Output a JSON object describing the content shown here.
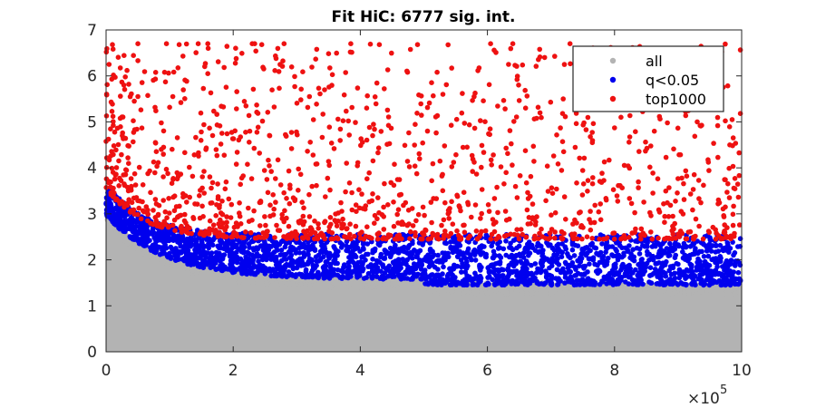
{
  "chart_data": {
    "type": "scatter",
    "title": "Fit HiC: 6777 sig. int.",
    "xlabel": "",
    "ylabel": "",
    "xlim": [
      0,
      10
    ],
    "ylim": [
      0,
      7
    ],
    "xticks": [
      "0",
      "2",
      "4",
      "6",
      "8",
      "10"
    ],
    "yticks": [
      "0",
      "1",
      "2",
      "3",
      "4",
      "5",
      "6",
      "7"
    ],
    "x_exponent_label": {
      "base": "×10",
      "exp": "5"
    },
    "grid": false,
    "legend_position": "top-right",
    "series": [
      {
        "name": "all",
        "color": "#b3b3b3",
        "marker": "dot",
        "description": "dense band from 0 up to a ceiling decaying from ~2.9 at x=0 to ~1.5 at x=10"
      },
      {
        "name": "q<0.05",
        "color": "#0000ee",
        "marker": "dot",
        "description": "band just above the grey ceiling, up to ~3.7 near x=0 and ~2.5 at x=10"
      },
      {
        "name": "top1000",
        "color": "#ee1111",
        "marker": "dot",
        "description": "scattered points above the blue band, up to ~6.7"
      }
    ],
    "notable_red_points": [
      {
        "x": 0.1,
        "y": 6.68
      },
      {
        "x": 0.5,
        "y": 6.7
      },
      {
        "x": 0.95,
        "y": 6.7
      },
      {
        "x": 1.15,
        "y": 6.68
      },
      {
        "x": 1.45,
        "y": 6.7
      },
      {
        "x": 1.6,
        "y": 6.7
      },
      {
        "x": 2.3,
        "y": 6.7
      },
      {
        "x": 2.45,
        "y": 6.68
      },
      {
        "x": 2.8,
        "y": 6.7
      },
      {
        "x": 3.85,
        "y": 6.7
      },
      {
        "x": 4.3,
        "y": 6.68
      },
      {
        "x": 4.9,
        "y": 6.68
      },
      {
        "x": 6.05,
        "y": 6.7
      },
      {
        "x": 6.4,
        "y": 6.7
      },
      {
        "x": 7.3,
        "y": 6.7
      },
      {
        "x": 0.5,
        "y": 5.55
      },
      {
        "x": 1.05,
        "y": 5.55
      },
      {
        "x": 1.6,
        "y": 6.05
      },
      {
        "x": 5.3,
        "y": 5.6
      },
      {
        "x": 6.9,
        "y": 6.4
      },
      {
        "x": 3.2,
        "y": 5.55
      },
      {
        "x": 4.1,
        "y": 5.3
      },
      {
        "x": 9.85,
        "y": 5.05
      },
      {
        "x": 6.6,
        "y": 5.3
      }
    ]
  }
}
